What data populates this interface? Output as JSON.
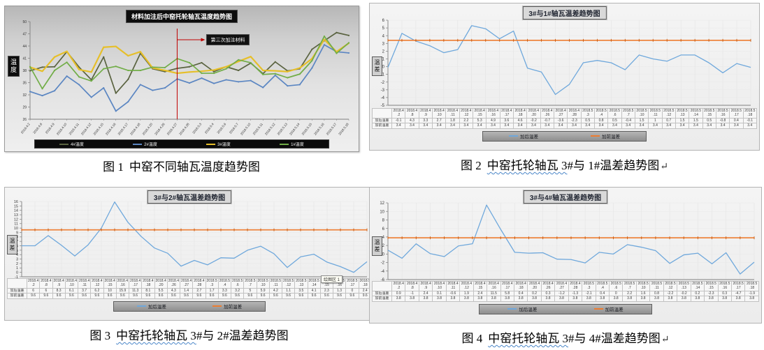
{
  "figures": [
    {
      "caption": {
        "num": "图 1",
        "wavy": "",
        "body": "中窑不同轴瓦温度趋势图",
        "mark": ""
      }
    },
    {
      "caption": {
        "num": "图 2",
        "wavy": "中窑托轮轴瓦 3",
        "body": "#与 1#温差趋势图",
        "mark": "↵"
      }
    },
    {
      "caption": {
        "num": "图 3",
        "wavy": "中窑托轮轴瓦 3",
        "body": "#与 2#温差趋势图",
        "mark": ""
      },
      "tooltip": "绘图区 1"
    },
    {
      "caption": {
        "num": "图 4",
        "wavy": "中窑托轮轴瓦 3",
        "body": "#与 4#温差趋势图",
        "mark": "↵"
      }
    }
  ],
  "chart_data": [
    {
      "type": "line",
      "title": "材料加注后中窑托轮轴瓦温度趋势图",
      "ylabel": "温度",
      "xlabel": "",
      "ylim": [
        26,
        50
      ],
      "ytick_step": 3,
      "grid_vertical": false,
      "grid_horizontal": false,
      "legend_position": "bottom",
      "x": [
        "2018.4.2",
        "2018.4.8",
        "2018.4.9",
        "2018.4.10",
        "2018.4.11",
        "2018.4.12",
        "2018.4.15",
        "2018.4.16",
        "2018.4.17",
        "2018.4.18",
        "2018.4.20",
        "2018.4.26",
        "2018.4.27",
        "2018.4.28",
        "2018.5.3",
        "2018.5.4",
        "2018.5.6",
        "2018.5.7",
        "2018.5.10",
        "2018.5.11",
        "2018.5.12",
        "2018.5.13",
        "2018.5.14",
        "2018.5.15",
        "2018.5.16",
        "2018.5.17",
        "2018.5.18"
      ],
      "series": [
        {
          "name": "4#温度",
          "color": "#5a6340",
          "width": 1.7,
          "marker": "dot",
          "values": [
            37.9,
            38.8,
            38.9,
            42.6,
            38.8,
            35.7,
            41.3,
            32.4,
            35.8,
            42.2,
            38.4,
            37.7,
            38.5,
            38.9,
            39.9,
            37.7,
            38.9,
            38.0,
            39.8,
            37.2,
            40.1,
            37.9,
            38.4,
            43.2,
            45.3,
            47.3,
            46.6
          ]
        },
        {
          "name": "2#温度",
          "color": "#5b86c2",
          "width": 1.7,
          "marker": "dot",
          "values": [
            32.8,
            31.8,
            33.0,
            36.6,
            34.5,
            31.4,
            33.7,
            28.0,
            30.3,
            34.5,
            33.1,
            33.7,
            35.9,
            34.9,
            36.1,
            34.8,
            35.7,
            35.2,
            35.5,
            33.8,
            36.8,
            34.2,
            34.5,
            38.6,
            44.3,
            42.6,
            42.3
          ]
        },
        {
          "name": "3#温度",
          "color": "#e6bf2a",
          "width": 2.2,
          "marker": "dot",
          "values": [
            38.8,
            37.8,
            41.3,
            42.7,
            38.2,
            37.6,
            43.7,
            43.9,
            41.6,
            42.6,
            38.6,
            38.0,
            37.3,
            37.6,
            37.8,
            38.1,
            38.9,
            40.2,
            41.4,
            38.0,
            37.9,
            37.7,
            38.6,
            40.9,
            45.6,
            42.6,
            44.7
          ]
        },
        {
          "name": "1#温度",
          "color": "#71ad47",
          "width": 1.7,
          "marker": "dot",
          "values": [
            38.9,
            33.5,
            38.0,
            40.0,
            36.4,
            35.4,
            38.4,
            39.0,
            38.0,
            38.0,
            38.8,
            38.7,
            40.9,
            39.9,
            37.3,
            37.3,
            38.4,
            40.6,
            39.9,
            37.0,
            37.2,
            36.2,
            37.1,
            40.4,
            46.4,
            42.2,
            44.8
          ]
        }
      ],
      "annotation": {
        "label": "第三次加注材料",
        "x_index": 12,
        "x_value": "2018.4.27",
        "color": "#c00000"
      }
    },
    {
      "type": "line",
      "title": "3#与1#轴瓦温差趋势图",
      "ylabel": "温差",
      "xlabel": "",
      "ylim": [
        -5,
        6
      ],
      "ytick_step": 1,
      "grid_vertical": true,
      "grid_horizontal": true,
      "legend_position": "bottom",
      "x": [
        "2018.4.2",
        "2018.4.8",
        "2018.4.9",
        "2018.4.10",
        "2018.4.11",
        "2018.4.12",
        "2018.4.15",
        "2018.4.16",
        "2018.4.17",
        "2018.4.18",
        "2018.4.20",
        "2018.4.26",
        "2018.4.27",
        "2018.4.28",
        "2018.5.3",
        "2018.5.4",
        "2018.5.6",
        "2018.5.7",
        "2018.5.10",
        "2018.5.11",
        "2018.5.12",
        "2018.5.13",
        "2018.5.14",
        "2018.5.15",
        "2018.5.16",
        "2018.5.17",
        "2018.5.18"
      ],
      "series": [
        {
          "name": "加后温差",
          "color": "#6fa8dc",
          "width": 1.3,
          "marker": "none",
          "values": [
            -0.1,
            4.3,
            3.3,
            2.7,
            1.8,
            2.2,
            5.3,
            4.9,
            3.6,
            4.6,
            -0.2,
            -0.7,
            -3.6,
            -2.3,
            0.5,
            0.8,
            0.5,
            -0.4,
            1.5,
            1,
            0.7,
            1.5,
            1.5,
            0.5,
            -0.8,
            0.4,
            -0.1
          ]
        },
        {
          "name": "加前温差",
          "color": "#ed7d31",
          "width": 1.6,
          "marker": "tick",
          "values": [
            3.4,
            3.4,
            3.4,
            3.4,
            3.4,
            3.4,
            3.4,
            3.4,
            3.4,
            3.4,
            3.4,
            3.4,
            3.4,
            3.4,
            3.4,
            3.4,
            3.4,
            3.4,
            3.4,
            3.4,
            3.4,
            3.4,
            3.4,
            3.4,
            3.4,
            3.4,
            3.4
          ]
        }
      ]
    },
    {
      "type": "line",
      "title": "3#与2#轴瓦温差趋势图",
      "ylabel": "温差",
      "xlabel": "",
      "ylim": [
        -1,
        16
      ],
      "ytick_step": 1,
      "grid_vertical": true,
      "grid_horizontal": true,
      "legend_position": "bottom",
      "x": [
        "2018.4.2",
        "2018.4.8",
        "2018.4.9",
        "2018.4.10",
        "2018.4.11",
        "2018.4.12",
        "2018.4.15",
        "2018.4.16",
        "2018.4.17",
        "2018.4.18",
        "2018.4.20",
        "2018.4.26",
        "2018.4.27",
        "2018.4.28",
        "2018.5.3",
        "2018.5.4",
        "2018.5.6",
        "2018.5.7",
        "2018.5.10",
        "2018.5.11",
        "2018.5.12",
        "2018.5.13",
        "2018.5.14",
        "2018.5.15",
        "2018.5.16",
        "2018.5.17",
        "2018.5.18"
      ],
      "series": [
        {
          "name": "加后温差",
          "color": "#6fa8dc",
          "width": 1.3,
          "marker": "none",
          "values": [
            6,
            6,
            8.3,
            6.1,
            3.7,
            6.2,
            10,
            15.9,
            11.3,
            8.1,
            5.5,
            4.3,
            1.4,
            2.7,
            1.7,
            3.3,
            3.2,
            5,
            5.9,
            4.2,
            1.1,
            3.5,
            4.1,
            2.3,
            1.3,
            0,
            2.4
          ]
        },
        {
          "name": "加前温差",
          "color": "#ed7d31",
          "width": 1.6,
          "marker": "tick",
          "values": [
            9.6,
            9.6,
            9.6,
            9.6,
            9.6,
            9.6,
            9.6,
            9.6,
            9.6,
            9.6,
            9.6,
            9.6,
            9.6,
            9.6,
            9.6,
            9.6,
            9.6,
            9.6,
            9.6,
            9.6,
            9.6,
            9.6,
            9.6,
            9.6,
            9.6,
            9.6,
            9.6
          ]
        }
      ]
    },
    {
      "type": "line",
      "title": "3#与4#轴瓦温差趋势图",
      "ylabel": "温差",
      "xlabel": "",
      "ylim": [
        -6,
        12
      ],
      "ytick_step": 2,
      "grid_vertical": true,
      "grid_horizontal": true,
      "legend_position": "bottom",
      "x": [
        "2018.4.2",
        "2018.4.8",
        "2018.4.9",
        "2018.4.10",
        "2018.4.11",
        "2018.4.12",
        "2018.4.15",
        "2018.4.16",
        "2018.4.17",
        "2018.4.18",
        "2018.4.20",
        "2018.4.26",
        "2018.4.27",
        "2018.4.28",
        "2018.5.3",
        "2018.5.4",
        "2018.5.6",
        "2018.5.7",
        "2018.5.10",
        "2018.5.11",
        "2018.5.12",
        "2018.5.13",
        "2018.5.14",
        "2018.5.15",
        "2018.5.16",
        "2018.5.17",
        "2018.5.18"
      ],
      "series": [
        {
          "name": "加后温差",
          "color": "#6fa8dc",
          "width": 1.3,
          "marker": "none",
          "values": [
            0.9,
            -1,
            2.4,
            0.1,
            -0.6,
            1.9,
            2.4,
            11.5,
            5.8,
            0.4,
            0.2,
            0.3,
            -1.2,
            -1.3,
            -2.1,
            0.4,
            0,
            2.2,
            1.6,
            0.8,
            -2.2,
            -0.2,
            0.2,
            -2.3,
            0.3,
            -4.7,
            -1.9
          ]
        },
        {
          "name": "加前温差",
          "color": "#ed7d31",
          "width": 1.6,
          "marker": "tick",
          "values": [
            3.8,
            3.8,
            3.8,
            3.8,
            3.8,
            3.8,
            3.8,
            3.8,
            3.8,
            3.8,
            3.8,
            3.8,
            3.8,
            3.8,
            3.8,
            3.8,
            3.8,
            3.8,
            3.8,
            3.8,
            3.8,
            3.8,
            3.8,
            3.8,
            3.8,
            3.8,
            3.8
          ]
        }
      ]
    }
  ]
}
